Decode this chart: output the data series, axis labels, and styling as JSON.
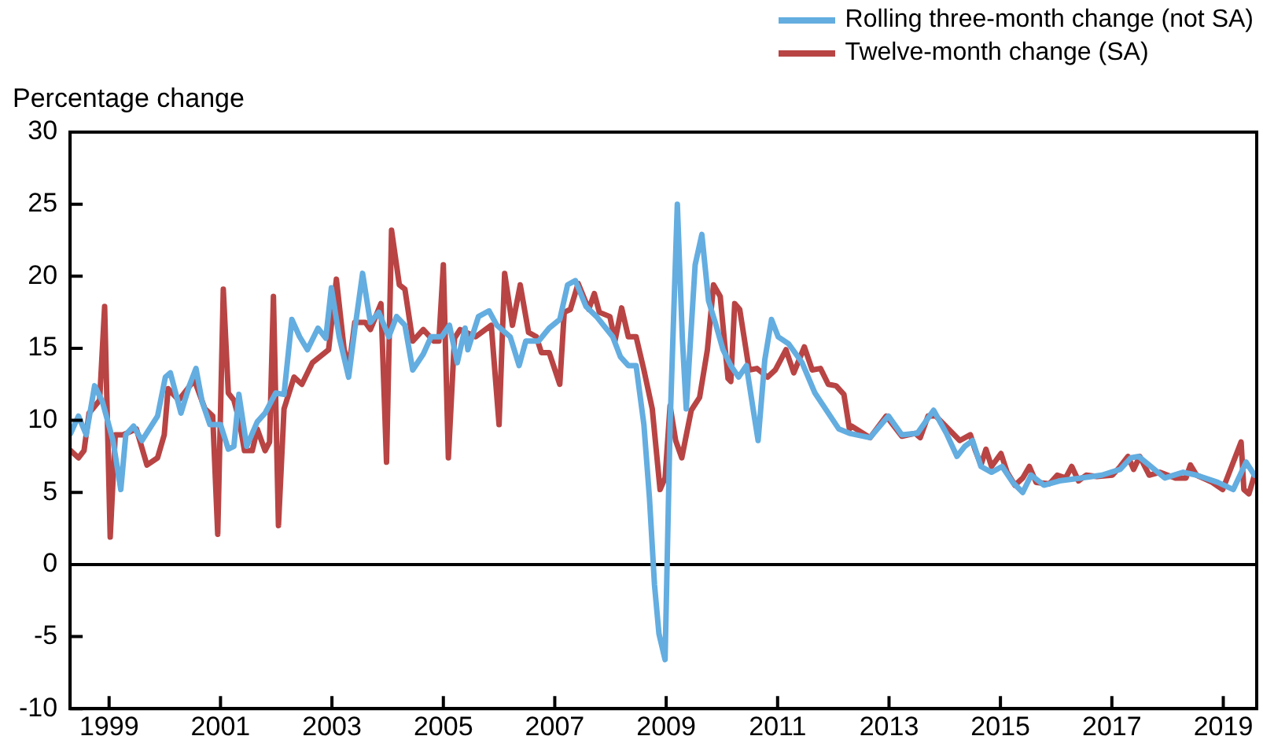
{
  "chart_data": {
    "type": "line",
    "ylabel": "Percentage change",
    "legend": "top right",
    "grid": false,
    "marker": "none",
    "line_style": "solid",
    "xlim": [
      1998.3,
      2019.6
    ],
    "xticks": [
      1999,
      2001,
      2003,
      2005,
      2007,
      2009,
      2011,
      2013,
      2015,
      2017,
      2019
    ],
    "ylim": [
      -10,
      30
    ],
    "yticks": [
      -10,
      -5,
      0,
      5,
      10,
      15,
      20,
      25,
      30
    ],
    "ref_lines": [
      {
        "axis": "y",
        "value": 0,
        "color": "#000000"
      }
    ],
    "series": [
      {
        "name": "Rolling three-month change (not SA)",
        "color": "#63ade0",
        "x": [
          1998.31,
          1998.45,
          1998.59,
          1998.74,
          1998.88,
          1999.07,
          1999.21,
          1999.3,
          1999.44,
          1999.59,
          1999.87,
          2000.01,
          2000.1,
          2000.29,
          2000.44,
          2000.56,
          2000.67,
          2000.81,
          2001.0,
          2001.14,
          2001.24,
          2001.33,
          2001.47,
          2001.66,
          2001.8,
          2001.99,
          2002.14,
          2002.28,
          2002.42,
          2002.56,
          2002.75,
          2002.89,
          2002.99,
          2003.13,
          2003.3,
          2003.41,
          2003.55,
          2003.69,
          2003.84,
          2004.02,
          2004.16,
          2004.31,
          2004.45,
          2004.64,
          2004.78,
          2004.97,
          2005.11,
          2005.25,
          2005.39,
          2005.44,
          2005.63,
          2005.82,
          2005.96,
          2006.2,
          2006.36,
          2006.48,
          2006.71,
          2006.9,
          2007.09,
          2007.23,
          2007.37,
          2007.56,
          2007.75,
          2008.04,
          2008.18,
          2008.32,
          2008.46,
          2008.6,
          2008.7,
          2008.79,
          2008.87,
          2008.98,
          2009.07,
          2009.2,
          2009.29,
          2009.36,
          2009.52,
          2009.64,
          2009.76,
          2009.88,
          2010.02,
          2010.16,
          2010.3,
          2010.44,
          2010.56,
          2010.65,
          2010.77,
          2010.89,
          2011.01,
          2011.2,
          2011.44,
          2011.67,
          2011.91,
          2012.1,
          2012.29,
          2012.66,
          2012.99,
          2013.23,
          2013.51,
          2013.8,
          2014.03,
          2014.22,
          2014.36,
          2014.5,
          2014.65,
          2014.84,
          2015.03,
          2015.22,
          2015.4,
          2015.55,
          2015.78,
          2016.06,
          2016.44,
          2016.82,
          2017.15,
          2017.34,
          2017.48,
          2017.67,
          2017.95,
          2018.28,
          2018.52,
          2018.9,
          2019.18,
          2019.41,
          2019.56
        ],
        "values": [
          9.1,
          10.3,
          9.0,
          12.4,
          11.3,
          8.6,
          5.2,
          9.0,
          9.6,
          8.6,
          10.3,
          13.0,
          13.3,
          10.5,
          12.4,
          13.6,
          11.3,
          9.7,
          9.7,
          8.0,
          8.2,
          11.8,
          8.2,
          9.9,
          10.5,
          11.9,
          11.8,
          17.0,
          15.8,
          14.9,
          16.4,
          15.7,
          19.2,
          15.8,
          13.0,
          16.3,
          20.2,
          16.8,
          17.5,
          15.8,
          17.2,
          16.6,
          13.5,
          14.6,
          15.8,
          15.8,
          16.6,
          14.0,
          16.4,
          14.9,
          17.2,
          17.6,
          16.6,
          15.8,
          13.8,
          15.5,
          15.5,
          16.4,
          17.0,
          19.4,
          19.7,
          17.9,
          17.2,
          15.8,
          14.4,
          13.8,
          13.8,
          9.7,
          4.6,
          -1.4,
          -4.8,
          -6.6,
          9.7,
          25.0,
          15.7,
          10.8,
          20.8,
          22.9,
          18.3,
          16.8,
          14.9,
          13.8,
          13.0,
          13.8,
          10.8,
          8.6,
          14.2,
          17.0,
          15.8,
          15.3,
          14.0,
          11.9,
          10.5,
          9.4,
          9.1,
          8.8,
          10.3,
          9.0,
          9.1,
          10.7,
          9.1,
          7.5,
          8.2,
          8.6,
          6.8,
          6.4,
          6.8,
          5.7,
          5.0,
          6.2,
          5.5,
          5.8,
          6.0,
          6.2,
          6.6,
          7.4,
          7.5,
          6.9,
          6.0,
          6.4,
          6.2,
          5.7,
          5.2,
          7.1,
          6.2
        ]
      },
      {
        "name": "Twelve-month change (SA)",
        "color": "#b94444",
        "x": [
          1998.31,
          1998.45,
          1998.55,
          1998.64,
          1998.83,
          1998.92,
          1999.02,
          1999.11,
          1999.25,
          1999.49,
          1999.68,
          1999.87,
          1999.99,
          2000.06,
          2000.25,
          2000.53,
          2000.72,
          2000.86,
          2000.95,
          2001.05,
          2001.14,
          2001.24,
          2001.33,
          2001.43,
          2001.57,
          2001.66,
          2001.8,
          2001.88,
          2001.95,
          2002.04,
          2002.14,
          2002.32,
          2002.46,
          2002.65,
          2002.94,
          2003.08,
          2003.22,
          2003.31,
          2003.41,
          2003.6,
          2003.69,
          2003.88,
          2003.98,
          2004.07,
          2004.21,
          2004.31,
          2004.45,
          2004.64,
          2004.83,
          2004.92,
          2005.0,
          2005.09,
          2005.2,
          2005.3,
          2005.58,
          2005.86,
          2006.0,
          2006.1,
          2006.24,
          2006.38,
          2006.53,
          2006.67,
          2006.76,
          2006.9,
          2007.09,
          2007.17,
          2007.28,
          2007.42,
          2007.61,
          2007.71,
          2007.8,
          2007.99,
          2008.08,
          2008.2,
          2008.32,
          2008.46,
          2008.6,
          2008.75,
          2008.89,
          2008.98,
          2009.07,
          2009.17,
          2009.28,
          2009.45,
          2009.6,
          2009.74,
          2009.85,
          2009.97,
          2010.11,
          2010.16,
          2010.23,
          2010.32,
          2010.49,
          2010.63,
          2010.82,
          2010.96,
          2011.15,
          2011.29,
          2011.48,
          2011.62,
          2011.77,
          2011.91,
          2012.05,
          2012.19,
          2012.29,
          2012.33,
          2012.66,
          2012.95,
          2013.23,
          2013.47,
          2013.56,
          2013.7,
          2013.84,
          2014.27,
          2014.46,
          2014.55,
          2014.65,
          2014.74,
          2014.84,
          2015.01,
          2015.12,
          2015.26,
          2015.4,
          2015.52,
          2015.64,
          2015.88,
          2016.02,
          2016.17,
          2016.28,
          2016.4,
          2016.54,
          2016.73,
          2017.01,
          2017.15,
          2017.29,
          2017.39,
          2017.5,
          2017.67,
          2017.86,
          2018.14,
          2018.33,
          2018.41,
          2018.52,
          2018.8,
          2018.99,
          2019.32,
          2019.37,
          2019.46,
          2019.56
        ],
        "values": [
          7.9,
          7.4,
          7.9,
          10.5,
          11.4,
          17.9,
          1.9,
          9.0,
          9.0,
          9.4,
          6.9,
          7.4,
          9.0,
          12.2,
          11.4,
          12.8,
          10.8,
          10.3,
          2.1,
          19.1,
          11.9,
          11.4,
          10.1,
          7.9,
          7.9,
          9.4,
          7.9,
          8.5,
          18.6,
          2.7,
          10.8,
          13.0,
          12.5,
          14.0,
          14.9,
          19.8,
          14.9,
          13.8,
          16.8,
          16.8,
          16.3,
          18.1,
          7.1,
          23.2,
          19.4,
          19.1,
          15.5,
          16.3,
          15.5,
          15.5,
          20.8,
          7.4,
          15.7,
          16.3,
          15.8,
          16.6,
          9.7,
          20.2,
          16.6,
          19.4,
          16.1,
          15.8,
          14.7,
          14.7,
          12.5,
          17.5,
          17.7,
          19.5,
          17.7,
          18.8,
          17.5,
          17.2,
          15.5,
          17.8,
          15.8,
          15.8,
          13.5,
          10.8,
          5.2,
          6.0,
          11.0,
          8.6,
          7.4,
          10.7,
          11.6,
          14.9,
          19.4,
          18.6,
          12.9,
          12.7,
          18.1,
          17.7,
          13.5,
          13.6,
          13.0,
          13.5,
          14.9,
          13.3,
          15.1,
          13.5,
          13.6,
          12.5,
          12.4,
          11.8,
          9.4,
          9.6,
          8.8,
          10.3,
          8.9,
          9.1,
          8.8,
          10.3,
          10.3,
          8.6,
          9.0,
          7.9,
          6.9,
          8.0,
          6.8,
          7.7,
          6.4,
          5.5,
          6.0,
          6.8,
          5.7,
          5.6,
          6.2,
          6.0,
          6.8,
          5.8,
          6.2,
          6.1,
          6.2,
          6.8,
          7.5,
          6.6,
          7.5,
          6.2,
          6.4,
          6.0,
          6.0,
          6.9,
          6.2,
          5.7,
          5.2,
          8.5,
          5.2,
          4.9,
          6.2
        ]
      }
    ]
  }
}
